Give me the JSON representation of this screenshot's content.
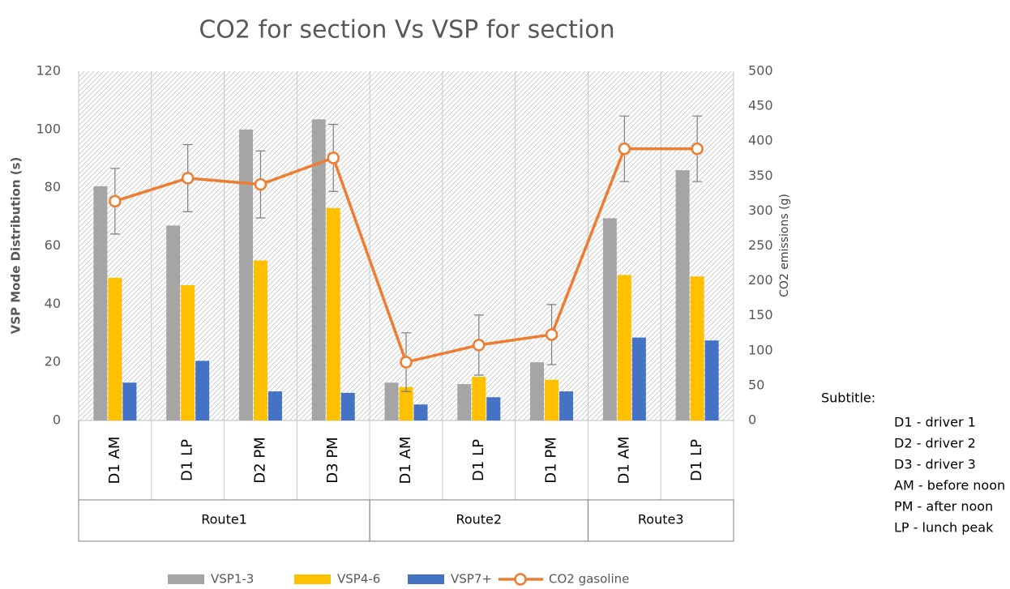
{
  "chart_data": {
    "type": "bar-line",
    "title": "CO2 for section Vs VSP for section",
    "ylabel": "VSP Mode Distribution (s)",
    "y2label": "CO2 emissions  (g)",
    "categories": [
      "D1 AM",
      "D1 LP",
      "D2 PM",
      "D3 PM",
      "D1 AM",
      "D1 LP",
      "D1 PM",
      "D1 AM",
      "D1 LP"
    ],
    "groups": [
      {
        "name": "Route1",
        "span": 4
      },
      {
        "name": "Route2",
        "span": 3
      },
      {
        "name": "Route3",
        "span": 2
      }
    ],
    "series": [
      {
        "name": "VSP1-3",
        "color": "#a5a5a5",
        "values": [
          80.5,
          67,
          100,
          103.5,
          13,
          12.5,
          20,
          69.5,
          86
        ]
      },
      {
        "name": "VSP4-6",
        "color": "#ffc000",
        "values": [
          49,
          46.5,
          55,
          73,
          11.5,
          15,
          14,
          50,
          49.5
        ]
      },
      {
        "name": "VSP7+",
        "color": "#4472c4",
        "values": [
          13,
          20.5,
          10,
          9.5,
          5.5,
          8,
          10,
          28.5,
          27.5
        ]
      },
      {
        "name": "CO2 gasoline",
        "color": "#ed7d31",
        "axis": "y2",
        "values": [
          314,
          347,
          338,
          376,
          83.5,
          108,
          123,
          389,
          389
        ],
        "errors": [
          47,
          48,
          48,
          48,
          42,
          43,
          43,
          47,
          47
        ]
      }
    ],
    "ylim": [
      0,
      120
    ],
    "yticks": [
      0,
      20,
      40,
      60,
      80,
      100,
      120
    ],
    "y2lim": [
      0,
      500
    ],
    "y2ticks": [
      0,
      50,
      100,
      150,
      200,
      250,
      300,
      350,
      400,
      450,
      500
    ],
    "legend": "bottom",
    "annotations": {
      "title": "Subtitle:",
      "lines": [
        "D1 - driver 1",
        "D2 - driver 2",
        "D3 - driver 3",
        "AM - before noon",
        "PM - after noon",
        "LP - lunch peak"
      ]
    }
  }
}
